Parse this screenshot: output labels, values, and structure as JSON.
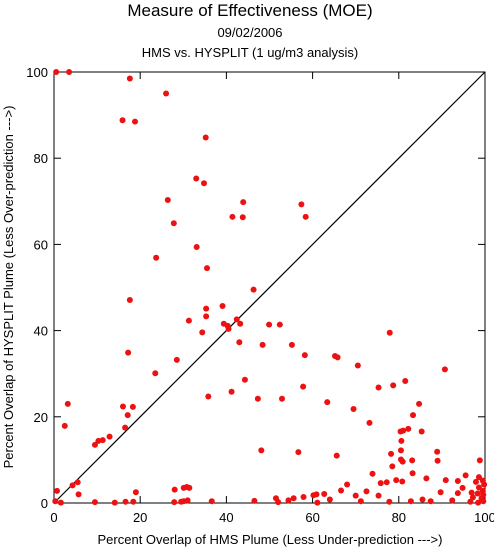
{
  "chart_data": {
    "type": "scatter",
    "title": "Measure of Effectiveness (MOE)",
    "subtitle": "09/02/2006",
    "subtitle2": "HMS vs. HYSPLIT  (1 ug/m3 analysis)",
    "xlabel": "Percent Overlap of HMS Plume (Less Under-prediction --->)",
    "ylabel": "Percent Overlap of HYSPLIT Plume (Less Over-prediction --->)",
    "xlim": [
      0,
      100
    ],
    "ylim": [
      0,
      100
    ],
    "xticks": [
      0,
      20,
      40,
      60,
      80,
      100
    ],
    "yticks": [
      0,
      20,
      40,
      60,
      80,
      100
    ],
    "grid": false,
    "reference_line": "y = x",
    "point_color": "#ee1111",
    "line_color": "#000000",
    "points": [
      [
        0.5,
        100
      ],
      [
        3.5,
        100
      ],
      [
        17.6,
        98.5
      ],
      [
        26,
        95
      ],
      [
        15.9,
        88.8
      ],
      [
        18.8,
        88.5
      ],
      [
        35.2,
        84.8
      ],
      [
        33,
        75.3
      ],
      [
        34.8,
        74.2
      ],
      [
        26.4,
        70.3
      ],
      [
        43.9,
        69.8
      ],
      [
        57.4,
        69.3
      ],
      [
        41.4,
        66.4
      ],
      [
        43.8,
        66.3
      ],
      [
        58.4,
        66.4
      ],
      [
        27.8,
        64.9
      ],
      [
        33.1,
        59.4
      ],
      [
        23.7,
        56.9
      ],
      [
        35.5,
        54.5
      ],
      [
        46.3,
        49.5
      ],
      [
        17.6,
        47.1
      ],
      [
        39.1,
        45.7
      ],
      [
        35.3,
        45.1
      ],
      [
        31.3,
        42.3
      ],
      [
        35.3,
        43.3
      ],
      [
        39.4,
        41.6
      ],
      [
        40.3,
        41.1
      ],
      [
        42.4,
        42.6
      ],
      [
        43.2,
        41.6
      ],
      [
        49.9,
        41.4
      ],
      [
        52.4,
        41.4
      ],
      [
        34.4,
        39.6
      ],
      [
        43,
        37.3
      ],
      [
        48.4,
        36.7
      ],
      [
        55.2,
        36.7
      ],
      [
        65.2,
        34.1
      ],
      [
        65.8,
        33.8
      ],
      [
        58.2,
        34.3
      ],
      [
        77.9,
        39.5
      ],
      [
        75.3,
        26.8
      ],
      [
        70.5,
        31.9
      ],
      [
        90.7,
        31
      ],
      [
        40.5,
        40.4
      ],
      [
        17.2,
        34.9
      ],
      [
        28.5,
        33.2
      ],
      [
        23.5,
        30.1
      ],
      [
        44.3,
        28.6
      ],
      [
        57.8,
        27
      ],
      [
        78.7,
        27.3
      ],
      [
        81.5,
        28.3
      ],
      [
        41.2,
        25.8
      ],
      [
        47.3,
        24.2
      ],
      [
        52.9,
        24.2
      ],
      [
        35.8,
        24.7
      ],
      [
        63.4,
        23.4
      ],
      [
        84.7,
        23
      ],
      [
        69.5,
        21.8
      ],
      [
        73.2,
        18.6
      ],
      [
        83.3,
        20.4
      ],
      [
        16,
        22.4
      ],
      [
        18.3,
        22.3
      ],
      [
        16.5,
        17.5
      ],
      [
        17.1,
        20.4
      ],
      [
        3.2,
        23
      ],
      [
        2.5,
        17.9
      ],
      [
        12.9,
        15.4
      ],
      [
        11.3,
        14.6
      ],
      [
        10.3,
        14.4
      ],
      [
        9.5,
        13.5
      ],
      [
        80.4,
        16.6
      ],
      [
        81,
        16.8
      ],
      [
        82.2,
        17.2
      ],
      [
        85.3,
        16.6
      ],
      [
        80.6,
        14.4
      ],
      [
        80.5,
        10.1
      ],
      [
        80.9,
        9.6
      ],
      [
        83.1,
        9.9
      ],
      [
        80.5,
        12.2
      ],
      [
        88.9,
        11.9
      ],
      [
        78.2,
        11.4
      ],
      [
        48.1,
        12.2
      ],
      [
        56.7,
        11.8
      ],
      [
        65.6,
        11
      ],
      [
        73.9,
        6.8
      ],
      [
        83.2,
        6.9
      ],
      [
        78.5,
        8.5
      ],
      [
        89,
        9.8
      ],
      [
        86.4,
        5.7
      ],
      [
        98.8,
        9.9
      ],
      [
        95.5,
        6.4
      ],
      [
        93.7,
        5.1
      ],
      [
        98.6,
        6
      ],
      [
        99.5,
        5.2
      ],
      [
        97.9,
        4.9
      ],
      [
        98.6,
        3.6
      ],
      [
        99.5,
        2.8
      ],
      [
        90.9,
        5.3
      ],
      [
        94.8,
        3.5
      ],
      [
        89.7,
        2.5
      ],
      [
        93.7,
        2.3
      ],
      [
        96.9,
        2.4
      ],
      [
        98.3,
        2.2
      ],
      [
        99.6,
        1.9
      ],
      [
        97.2,
        1.3
      ],
      [
        99.2,
        1.1
      ],
      [
        99.6,
        0.4
      ],
      [
        96.6,
        0.3
      ],
      [
        92.4,
        0.6
      ],
      [
        87.4,
        0.4
      ],
      [
        85.5,
        0.8
      ],
      [
        82.8,
        0.4
      ],
      [
        77.8,
        0.3
      ],
      [
        75.3,
        1.7
      ],
      [
        75.8,
        4.6
      ],
      [
        77.2,
        4.8
      ],
      [
        79.4,
        5.3
      ],
      [
        80.8,
        5
      ],
      [
        72.5,
        2.7
      ],
      [
        68,
        4.3
      ],
      [
        70,
        1.7
      ],
      [
        71.2,
        0.4
      ],
      [
        66.6,
        2.9
      ],
      [
        64,
        0.8
      ],
      [
        62.7,
        2.1
      ],
      [
        60.2,
        1.8
      ],
      [
        60.9,
        2
      ],
      [
        57.9,
        1.4
      ],
      [
        55.6,
        1.1
      ],
      [
        54.4,
        0.6
      ],
      [
        51.5,
        1.1
      ],
      [
        52,
        0.2
      ],
      [
        61.1,
        0.1
      ],
      [
        46.5,
        0.5
      ],
      [
        36.6,
        0.4
      ],
      [
        30.1,
        3.5
      ],
      [
        30.8,
        3.7
      ],
      [
        31.4,
        3.5
      ],
      [
        28,
        3.1
      ],
      [
        27.9,
        0.2
      ],
      [
        29.5,
        0.3
      ],
      [
        30.1,
        0.4
      ],
      [
        31,
        0.6
      ],
      [
        19,
        2.5
      ],
      [
        18.4,
        0.3
      ],
      [
        16.6,
        0.3
      ],
      [
        9.5,
        0.2
      ],
      [
        5.7,
        2
      ],
      [
        5.5,
        4.8
      ],
      [
        4.3,
        4.1
      ],
      [
        0.7,
        2.8
      ],
      [
        0.3,
        0.4
      ],
      [
        1.6,
        0.1
      ],
      [
        14.1,
        0.1
      ],
      [
        98.4,
        0.1
      ],
      [
        99.8,
        4.3
      ]
    ]
  }
}
